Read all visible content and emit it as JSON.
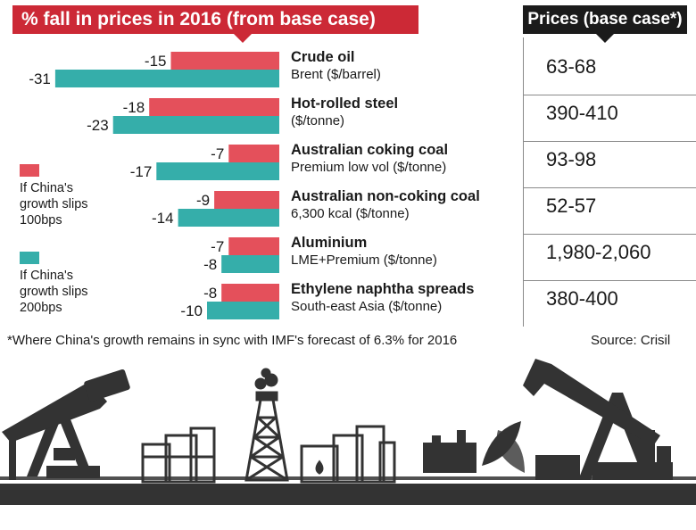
{
  "header": {
    "title": "% fall in prices in 2016 (from base case)",
    "prices_title": "Prices (base case*)"
  },
  "colors": {
    "series1": "#e4505b",
    "series2": "#35aeaa",
    "header_red": "#cc2936",
    "header_black": "#1b1b1b",
    "silhouette": "#333333"
  },
  "legend": [
    {
      "label_lines": [
        "If China's",
        "growth slips",
        "100bps"
      ]
    },
    {
      "label_lines": [
        "If China's",
        "growth slips",
        "200bps"
      ]
    }
  ],
  "chart_data": {
    "type": "bar",
    "orientation": "horizontal",
    "title": "% fall in prices in 2016 (from base case)",
    "categories": [
      {
        "name": "Crude oil",
        "unit": "Brent ($/barrel)",
        "price": "63-68"
      },
      {
        "name": "Hot-rolled steel",
        "unit": "($/tonne)",
        "price": "390-410"
      },
      {
        "name": "Australian coking coal",
        "unit": "Premium low vol ($/tonne)",
        "price": "93-98"
      },
      {
        "name": "Australian non-coking coal",
        "unit": "6,300 kcal ($/tonne)",
        "price": "52-57"
      },
      {
        "name": "Aluminium",
        "unit": "LME+Premium ($/tonne)",
        "price": "1,980-2,060"
      },
      {
        "name": "Ethylene naphtha spreads",
        "unit": "South-east Asia ($/tonne)",
        "price": "380-400"
      }
    ],
    "series": [
      {
        "name": "If China's growth slips 100bps",
        "values": [
          -15,
          -18,
          -7,
          -9,
          -7,
          -8
        ]
      },
      {
        "name": "If China's growth slips 200bps",
        "values": [
          -31,
          -23,
          -17,
          -14,
          -8,
          -10
        ]
      }
    ],
    "xlim": [
      -31,
      0
    ]
  },
  "footnote": "*Where China's growth remains in sync with IMF's forecast of 6.3% for 2016",
  "source": "Source: Crisil"
}
